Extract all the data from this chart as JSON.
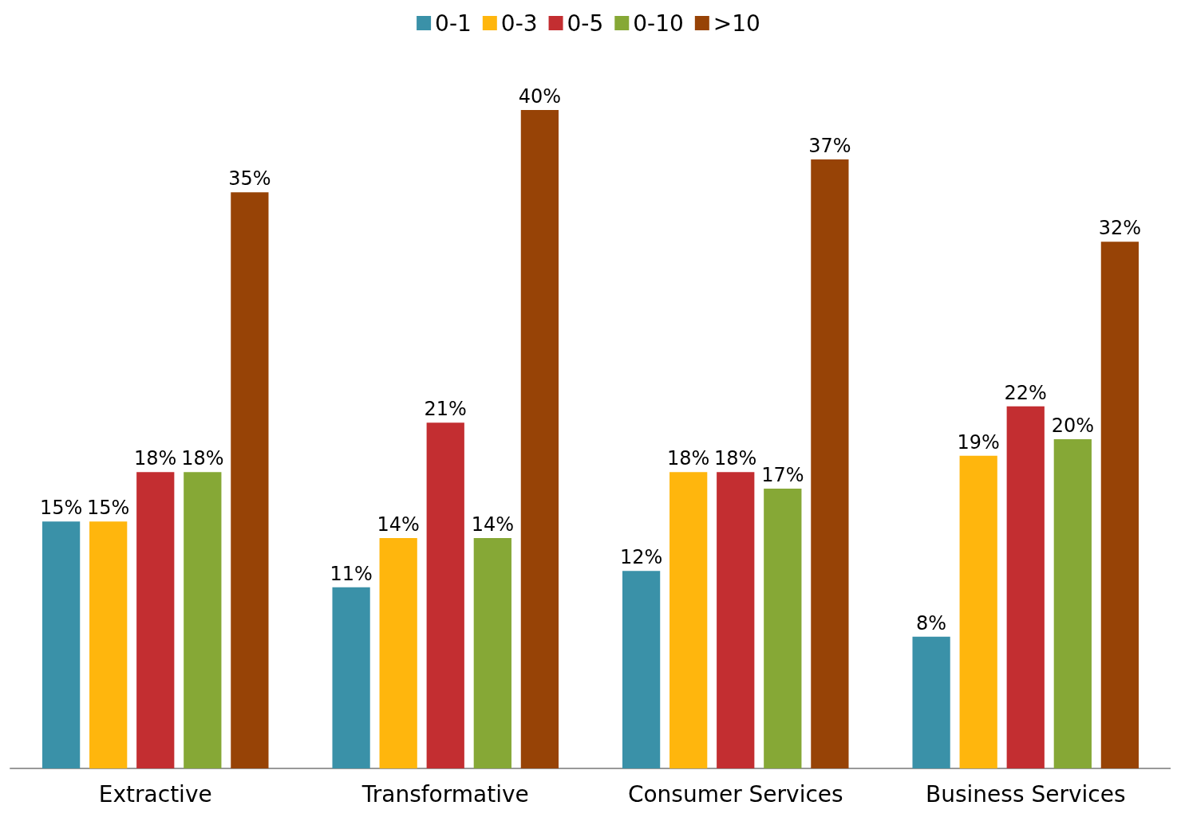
{
  "chart_data": {
    "type": "bar",
    "categories": [
      "Extractive",
      "Transformative",
      "Consumer Services",
      "Business Services"
    ],
    "series": [
      {
        "name": "0-1",
        "color": "#3a91a8",
        "values": [
          15,
          11,
          12,
          8
        ],
        "value_labels": [
          "15%",
          "11%",
          "12%",
          "8%"
        ]
      },
      {
        "name": "0-3",
        "color": "#ffb60d",
        "values": [
          15,
          14,
          18,
          19
        ],
        "value_labels": [
          "15%",
          "14%",
          "18%",
          "19%"
        ]
      },
      {
        "name": "0-5",
        "color": "#c32e31",
        "values": [
          18,
          21,
          18,
          22
        ],
        "value_labels": [
          "18%",
          "21%",
          "18%",
          "22%"
        ]
      },
      {
        "name": "0-10",
        "color": "#86a836",
        "values": [
          18,
          14,
          17,
          20
        ],
        "value_labels": [
          "18%",
          "14%",
          "17%",
          "20%"
        ]
      },
      {
        "name": ">10",
        "color": "#974306",
        "values": [
          35,
          40,
          37,
          32
        ],
        "value_labels": [
          "35%",
          "40%",
          "37%",
          "32%"
        ]
      }
    ],
    "legend": "top",
    "grid": false
  }
}
